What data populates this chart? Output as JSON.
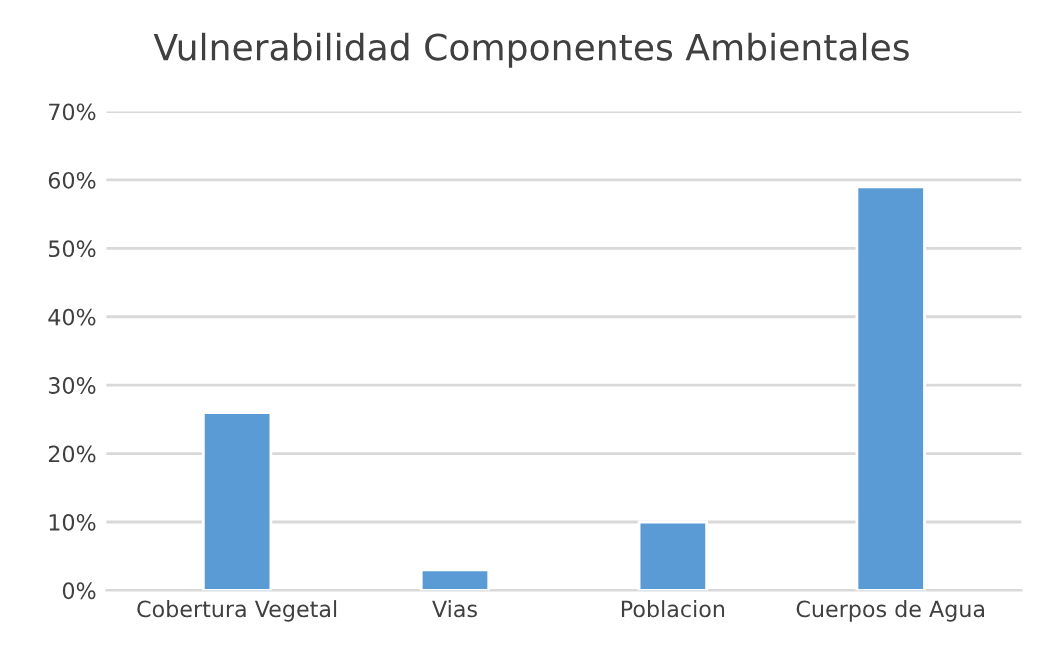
{
  "chart_data": {
    "type": "bar",
    "title": "Vulnerabilidad Componentes Ambientales",
    "categories": [
      "Cobertura Vegetal",
      "Vias",
      "Poblacion",
      "Cuerpos de Agua"
    ],
    "values": [
      26,
      3,
      10,
      59
    ],
    "color": "#5b9bd5",
    "ylim": [
      0,
      70
    ],
    "yticks": [
      {
        "value": 0,
        "label": "0%"
      },
      {
        "value": 10,
        "label": "10%"
      },
      {
        "value": 20,
        "label": "20%"
      },
      {
        "value": 30,
        "label": "30%"
      },
      {
        "value": 40,
        "label": "40%"
      },
      {
        "value": 50,
        "label": "50%"
      },
      {
        "value": 60,
        "label": "60%"
      },
      {
        "value": 70,
        "label": "70%"
      }
    ],
    "grid": "y"
  }
}
